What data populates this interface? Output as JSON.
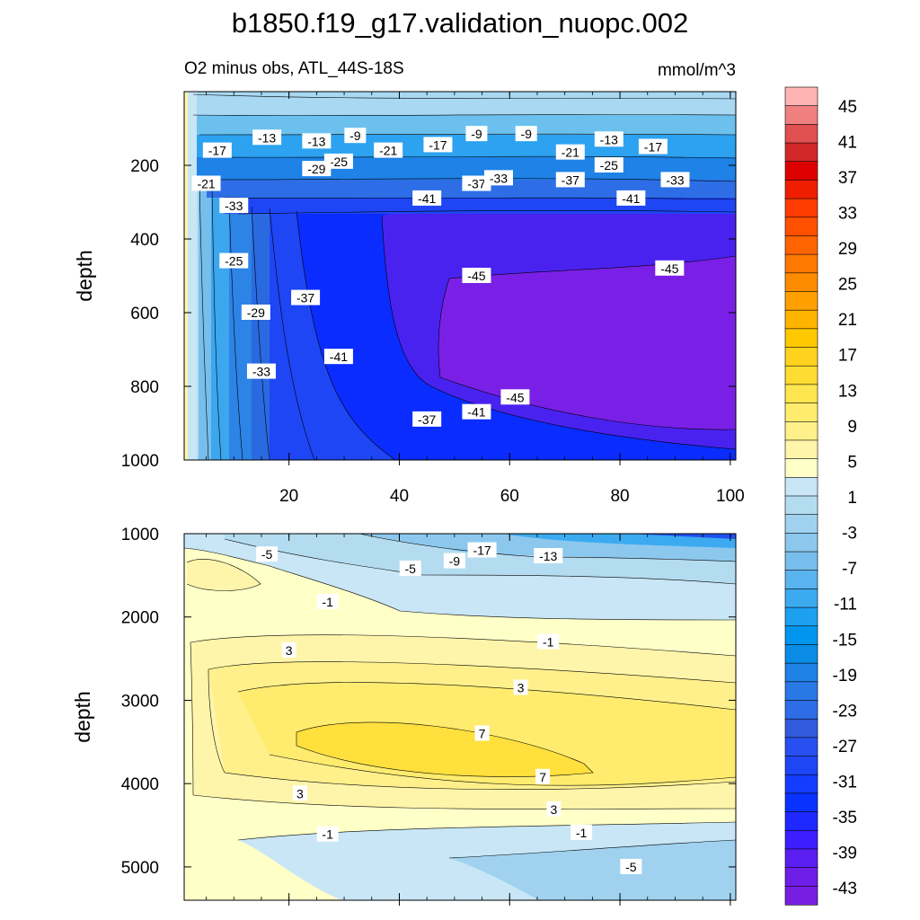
{
  "title": "b1850.f19_g17.validation_nuopc.002",
  "subtitle_left": "O2 minus obs, ATL_44S-18S",
  "units": "mmol/m^3",
  "colors": {
    "plot_frame": "#000000",
    "contour_line": "#000000",
    "label_bg": "#ffffff"
  },
  "chart_data": [
    {
      "type": "heatmap",
      "panel": "upper",
      "ylabel": "depth",
      "xlabel": "",
      "xlim": [
        1,
        101
      ],
      "ylim": [
        1000,
        0
      ],
      "x_ticks": [
        20,
        40,
        60,
        80,
        100
      ],
      "y_ticks": [
        200,
        400,
        600,
        800,
        1000
      ],
      "approx_field": "interior minimum near -45 mmol/m^3 from x=50 to x=100 at 500-900 m depth; values near -1 at x=1; -13 to -9 near surface",
      "contour_labels": [
        {
          "x": 16,
          "y": 125,
          "value": "-13"
        },
        {
          "x": 25,
          "y": 135,
          "value": "-13"
        },
        {
          "x": 32,
          "y": 120,
          "value": "-9"
        },
        {
          "x": 7,
          "y": 160,
          "value": "-17"
        },
        {
          "x": 47,
          "y": 145,
          "value": "-17"
        },
        {
          "x": 54,
          "y": 115,
          "value": "-9"
        },
        {
          "x": 63,
          "y": 115,
          "value": "-9"
        },
        {
          "x": 78,
          "y": 130,
          "value": "-13"
        },
        {
          "x": 86,
          "y": 150,
          "value": "-17"
        },
        {
          "x": 38,
          "y": 160,
          "value": "-21"
        },
        {
          "x": 71,
          "y": 165,
          "value": "-21"
        },
        {
          "x": 29,
          "y": 190,
          "value": "-25"
        },
        {
          "x": 25,
          "y": 210,
          "value": "-29"
        },
        {
          "x": 78,
          "y": 200,
          "value": "-25"
        },
        {
          "x": 5,
          "y": 250,
          "value": "-21"
        },
        {
          "x": 10,
          "y": 310,
          "value": "-33"
        },
        {
          "x": 45,
          "y": 290,
          "value": "-41"
        },
        {
          "x": 54,
          "y": 250,
          "value": "-37"
        },
        {
          "x": 58,
          "y": 235,
          "value": "-33"
        },
        {
          "x": 71,
          "y": 240,
          "value": "-37"
        },
        {
          "x": 82,
          "y": 290,
          "value": "-41"
        },
        {
          "x": 90,
          "y": 240,
          "value": "-33"
        },
        {
          "x": 10,
          "y": 460,
          "value": "-25"
        },
        {
          "x": 54,
          "y": 500,
          "value": "-45"
        },
        {
          "x": 89,
          "y": 480,
          "value": "-45"
        },
        {
          "x": 23,
          "y": 560,
          "value": "-37"
        },
        {
          "x": 14,
          "y": 600,
          "value": "-29"
        },
        {
          "x": 29,
          "y": 720,
          "value": "-41"
        },
        {
          "x": 15,
          "y": 760,
          "value": "-33"
        },
        {
          "x": 61,
          "y": 830,
          "value": "-45"
        },
        {
          "x": 54,
          "y": 870,
          "value": "-41"
        },
        {
          "x": 45,
          "y": 890,
          "value": "-37"
        }
      ]
    },
    {
      "type": "heatmap",
      "panel": "lower",
      "ylabel": "depth",
      "xlabel": "",
      "xlim": [
        1,
        101
      ],
      "ylim": [
        5400,
        1000
      ],
      "x_ticks": [
        20,
        40,
        60,
        80,
        100
      ],
      "y_ticks": [
        1000,
        2000,
        3000,
        4000,
        5000
      ],
      "approx_field": "maximum near +9 around x=30-70 at 3300-3900 m; negative -17 near 1000 m; negative below 4600 m down to -7",
      "contour_labels": [
        {
          "x": 16,
          "y": 1250,
          "value": "-5"
        },
        {
          "x": 42,
          "y": 1420,
          "value": "-5"
        },
        {
          "x": 50,
          "y": 1330,
          "value": "-9"
        },
        {
          "x": 55,
          "y": 1200,
          "value": "-17"
        },
        {
          "x": 67,
          "y": 1270,
          "value": "-13"
        },
        {
          "x": 27,
          "y": 1820,
          "value": "-1"
        },
        {
          "x": 67,
          "y": 2300,
          "value": "-1"
        },
        {
          "x": 20,
          "y": 2400,
          "value": "3"
        },
        {
          "x": 62,
          "y": 2850,
          "value": "3"
        },
        {
          "x": 55,
          "y": 3400,
          "value": "7"
        },
        {
          "x": 66,
          "y": 3920,
          "value": "7"
        },
        {
          "x": 22,
          "y": 4120,
          "value": "3"
        },
        {
          "x": 68,
          "y": 4310,
          "value": "3"
        },
        {
          "x": 27,
          "y": 4610,
          "value": "-1"
        },
        {
          "x": 73,
          "y": 4590,
          "value": "-1"
        },
        {
          "x": 82,
          "y": 5000,
          "value": "-5"
        }
      ]
    }
  ],
  "colorbar": {
    "labels": [
      "45",
      "41",
      "37",
      "33",
      "29",
      "25",
      "21",
      "17",
      "13",
      "9",
      "5",
      "1",
      "-3",
      "-7",
      "-11",
      "-15",
      "-19",
      "-23",
      "-27",
      "-31",
      "-35",
      "-39",
      "-43"
    ],
    "colors": [
      "#ffb4b4",
      "#f08080",
      "#e05050",
      "#d02828",
      "#dc0000",
      "#f01e00",
      "#ff3c00",
      "#ff5000",
      "#ff6400",
      "#ff7800",
      "#ff8c00",
      "#ffa000",
      "#ffb400",
      "#ffc800",
      "#ffd21e",
      "#ffdc32",
      "#ffe650",
      "#ffec6e",
      "#fff08c",
      "#fff5aa",
      "#ffffc8",
      "#c8e6f5",
      "#b4dcf0",
      "#a0d2f0",
      "#8cc8ee",
      "#78beec",
      "#5ab4f0",
      "#3caaf0",
      "#1ea0f0",
      "#0096f0",
      "#0a8ce6",
      "#1e82e6",
      "#2878e6",
      "#2d6ee6",
      "#325adc",
      "#2850f0",
      "#1e46f5",
      "#143cff",
      "#0a32ff",
      "#1e28ff",
      "#3c1eff",
      "#5a1ef0",
      "#6e1ee6",
      "#781ee0"
    ]
  }
}
